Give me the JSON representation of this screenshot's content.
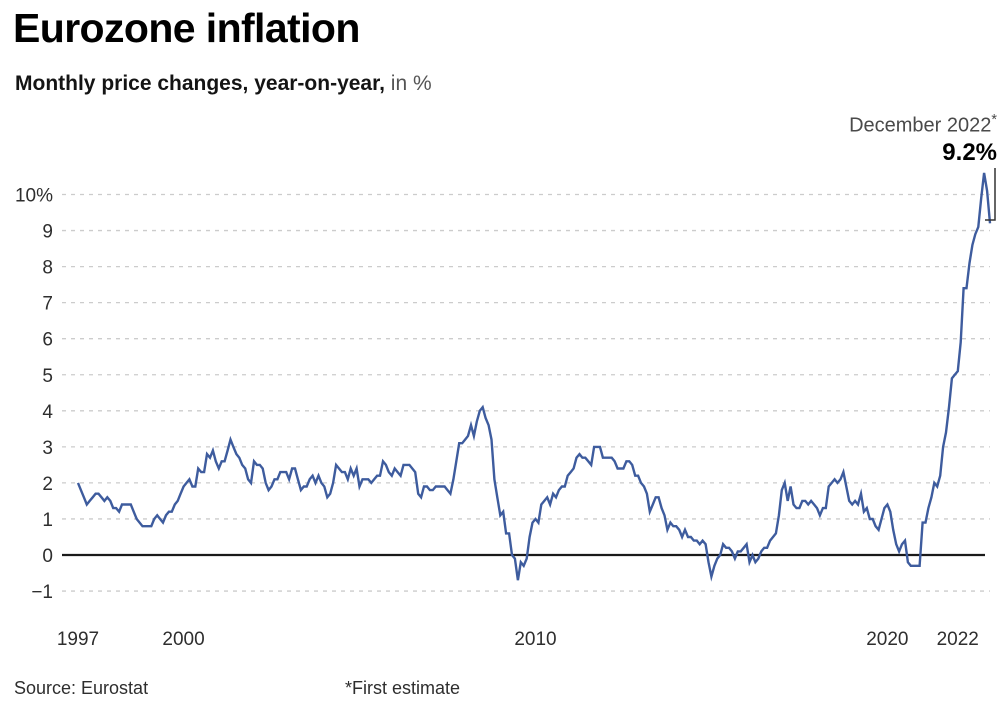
{
  "header": {
    "title": "Eurozone inflation",
    "subtitle_bold": "Monthly price changes, year-on-year,",
    "subtitle_light": " in %"
  },
  "annotation": {
    "date_label": "December 2022",
    "asterisk": "*",
    "value": "9.2%"
  },
  "footer": {
    "source": "Source: Eurostat",
    "note": "*First estimate"
  },
  "colors": {
    "line": "#3e5c9e",
    "grid": "#cccccc",
    "zero_line": "#1a1a1a",
    "axis_text": "#2e2e2e",
    "bracket": "#333333"
  },
  "chart_data": {
    "type": "line",
    "title": "Eurozone inflation",
    "ylabel": "Monthly price changes, year-on-year, in %",
    "x_range": [
      "1997-01",
      "2022-12"
    ],
    "ylim": [
      -1.6,
      10.8
    ],
    "grid": "horizontal-dashed",
    "legend": "none",
    "x_ticks": [
      {
        "year": 1997,
        "label": "1997"
      },
      {
        "year": 2000,
        "label": "2000"
      },
      {
        "year": 2010,
        "label": "2010"
      },
      {
        "year": 2020,
        "label": "2020"
      },
      {
        "year": 2022,
        "label": "2022"
      }
    ],
    "y_ticks": [
      {
        "value": 10,
        "label": "10%"
      },
      {
        "value": 9,
        "label": "9"
      },
      {
        "value": 8,
        "label": "8"
      },
      {
        "value": 7,
        "label": "7"
      },
      {
        "value": 6,
        "label": "6"
      },
      {
        "value": 5,
        "label": "5"
      },
      {
        "value": 4,
        "label": "4"
      },
      {
        "value": 3,
        "label": "3"
      },
      {
        "value": 2,
        "label": "2"
      },
      {
        "value": 1,
        "label": "1"
      },
      {
        "value": 0,
        "label": "0"
      },
      {
        "value": -1,
        "label": "−1"
      }
    ],
    "highlight": {
      "label": "December 2022*",
      "value_pct": 9.2
    },
    "series": [
      {
        "year": 1997,
        "values": [
          2.0,
          1.8,
          1.6,
          1.4,
          1.5,
          1.6,
          1.7,
          1.7,
          1.6,
          1.5,
          1.6,
          1.5
        ]
      },
      {
        "year": 1998,
        "values": [
          1.3,
          1.3,
          1.2,
          1.4,
          1.4,
          1.4,
          1.4,
          1.2,
          1.0,
          0.9,
          0.8,
          0.8
        ]
      },
      {
        "year": 1999,
        "values": [
          0.8,
          0.8,
          1.0,
          1.1,
          1.0,
          0.9,
          1.1,
          1.2,
          1.2,
          1.4,
          1.5,
          1.7
        ]
      },
      {
        "year": 2000,
        "values": [
          1.9,
          2.0,
          2.1,
          1.9,
          1.9,
          2.4,
          2.3,
          2.3,
          2.8,
          2.7,
          2.9,
          2.6
        ]
      },
      {
        "year": 2001,
        "values": [
          2.4,
          2.6,
          2.6,
          2.9,
          3.2,
          3.0,
          2.8,
          2.7,
          2.5,
          2.4,
          2.1,
          2.0
        ]
      },
      {
        "year": 2002,
        "values": [
          2.6,
          2.5,
          2.5,
          2.4,
          2.0,
          1.8,
          1.9,
          2.1,
          2.1,
          2.3,
          2.3,
          2.3
        ]
      },
      {
        "year": 2003,
        "values": [
          2.1,
          2.4,
          2.4,
          2.1,
          1.8,
          1.9,
          1.9,
          2.1,
          2.2,
          2.0,
          2.2,
          2.0
        ]
      },
      {
        "year": 2004,
        "values": [
          1.9,
          1.6,
          1.7,
          2.0,
          2.5,
          2.4,
          2.3,
          2.3,
          2.1,
          2.4,
          2.2,
          2.4
        ]
      },
      {
        "year": 2005,
        "values": [
          1.9,
          2.1,
          2.1,
          2.1,
          2.0,
          2.1,
          2.2,
          2.2,
          2.6,
          2.5,
          2.3,
          2.2
        ]
      },
      {
        "year": 2006,
        "values": [
          2.4,
          2.3,
          2.2,
          2.5,
          2.5,
          2.5,
          2.4,
          2.3,
          1.7,
          1.6,
          1.9,
          1.9
        ]
      },
      {
        "year": 2007,
        "values": [
          1.8,
          1.8,
          1.9,
          1.9,
          1.9,
          1.9,
          1.8,
          1.7,
          2.1,
          2.6,
          3.1,
          3.1
        ]
      },
      {
        "year": 2008,
        "values": [
          3.2,
          3.3,
          3.6,
          3.3,
          3.7,
          4.0,
          4.1,
          3.8,
          3.6,
          3.2,
          2.1,
          1.6
        ]
      },
      {
        "year": 2009,
        "values": [
          1.1,
          1.2,
          0.6,
          0.6,
          0.0,
          -0.1,
          -0.7,
          -0.2,
          -0.3,
          -0.1,
          0.5,
          0.9
        ]
      },
      {
        "year": 2010,
        "values": [
          1.0,
          0.9,
          1.4,
          1.5,
          1.6,
          1.4,
          1.7,
          1.6,
          1.8,
          1.9,
          1.9,
          2.2
        ]
      },
      {
        "year": 2011,
        "values": [
          2.3,
          2.4,
          2.7,
          2.8,
          2.7,
          2.7,
          2.6,
          2.5,
          3.0,
          3.0,
          3.0,
          2.7
        ]
      },
      {
        "year": 2012,
        "values": [
          2.7,
          2.7,
          2.7,
          2.6,
          2.4,
          2.4,
          2.4,
          2.6,
          2.6,
          2.5,
          2.2,
          2.2
        ]
      },
      {
        "year": 2013,
        "values": [
          2.0,
          1.9,
          1.7,
          1.2,
          1.4,
          1.6,
          1.6,
          1.3,
          1.1,
          0.7,
          0.9,
          0.8
        ]
      },
      {
        "year": 2014,
        "values": [
          0.8,
          0.7,
          0.5,
          0.7,
          0.5,
          0.5,
          0.4,
          0.4,
          0.3,
          0.4,
          0.3,
          -0.2
        ]
      },
      {
        "year": 2015,
        "values": [
          -0.6,
          -0.3,
          -0.1,
          0.0,
          0.3,
          0.2,
          0.2,
          0.1,
          -0.1,
          0.1,
          0.1,
          0.2
        ]
      },
      {
        "year": 2016,
        "values": [
          0.3,
          -0.2,
          0.0,
          -0.2,
          -0.1,
          0.1,
          0.2,
          0.2,
          0.4,
          0.5,
          0.6,
          1.1
        ]
      },
      {
        "year": 2017,
        "values": [
          1.8,
          2.0,
          1.5,
          1.9,
          1.4,
          1.3,
          1.3,
          1.5,
          1.5,
          1.4,
          1.5,
          1.4
        ]
      },
      {
        "year": 2018,
        "values": [
          1.3,
          1.1,
          1.3,
          1.3,
          1.9,
          2.0,
          2.1,
          2.0,
          2.1,
          2.3,
          1.9,
          1.5
        ]
      },
      {
        "year": 2019,
        "values": [
          1.4,
          1.5,
          1.4,
          1.7,
          1.2,
          1.3,
          1.0,
          1.0,
          0.8,
          0.7,
          1.0,
          1.3
        ]
      },
      {
        "year": 2020,
        "values": [
          1.4,
          1.2,
          0.7,
          0.3,
          0.1,
          0.3,
          0.4,
          -0.2,
          -0.3,
          -0.3,
          -0.3,
          -0.3
        ]
      },
      {
        "year": 2021,
        "values": [
          0.9,
          0.9,
          1.3,
          1.6,
          2.0,
          1.9,
          2.2,
          3.0,
          3.4,
          4.1,
          4.9,
          5.0
        ]
      },
      {
        "year": 2022,
        "values": [
          5.1,
          5.9,
          7.4,
          7.4,
          8.1,
          8.6,
          8.9,
          9.1,
          9.9,
          10.6,
          10.1,
          9.2
        ]
      }
    ]
  }
}
